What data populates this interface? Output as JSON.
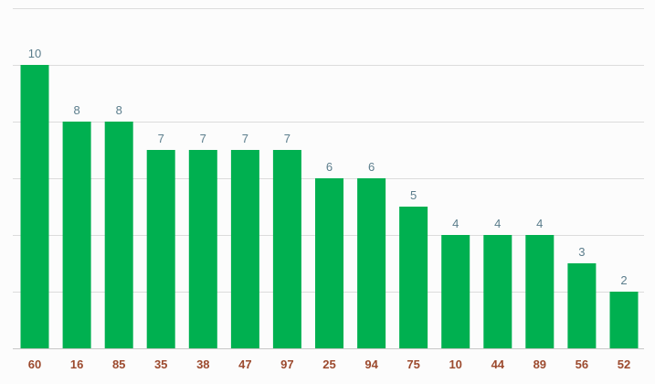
{
  "chart_data": {
    "type": "bar",
    "categories": [
      "60",
      "16",
      "85",
      "35",
      "38",
      "47",
      "97",
      "25",
      "94",
      "75",
      "10",
      "44",
      "89",
      "56",
      "52"
    ],
    "values": [
      10,
      8,
      8,
      7,
      7,
      7,
      7,
      6,
      6,
      5,
      4,
      4,
      4,
      3,
      2
    ],
    "ylim": [
      0,
      12
    ],
    "grid": true,
    "legend": "none",
    "colors": {
      "bar": "#00b050",
      "value_label": "#5b7d8c",
      "category_label": "#9c4a2e",
      "grid": "#dcdcdc",
      "background": "#fcfcfc"
    }
  }
}
